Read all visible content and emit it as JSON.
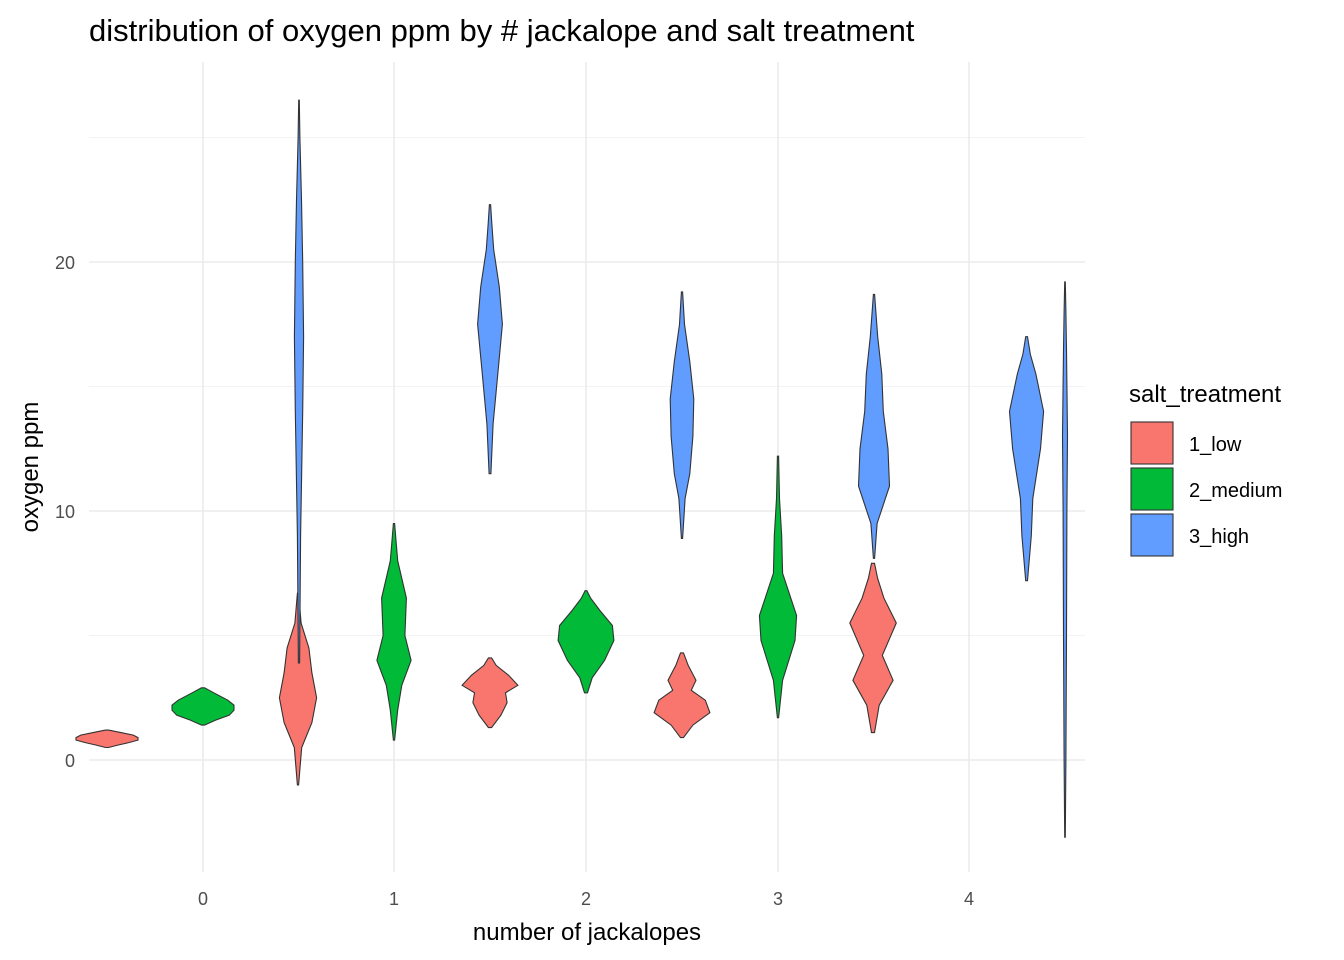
{
  "chart_data": {
    "type": "violin",
    "title": "distribution of oxygen ppm by # jackalope and salt treatment",
    "xlabel": "number of jackalopes",
    "ylabel": "oxygen ppm",
    "categories": [
      "0",
      "1",
      "2",
      "3",
      "4"
    ],
    "yticks": [
      "0",
      "10",
      "20"
    ],
    "ylim": [
      -4.5,
      28.5
    ],
    "grid": true,
    "legend": {
      "title": "salt_treatment",
      "placement": "right",
      "entries": [
        {
          "label": "1_low",
          "color": "#F8766D"
        },
        {
          "label": "2_medium",
          "color": "#00BA38"
        },
        {
          "label": "3_high",
          "color": "#619CFF"
        }
      ]
    },
    "series": [
      {
        "name": "1_low",
        "color": "#F8766D",
        "violins": [
          {
            "x": "0",
            "min": 0.5,
            "max": 1.2,
            "profile": [
              [
                0.5,
                0.05
              ],
              [
                0.6,
                0.35
              ],
              [
                0.7,
                0.7
              ],
              [
                0.8,
                1.0
              ],
              [
                0.9,
                1.0
              ],
              [
                1.0,
                0.85
              ],
              [
                1.1,
                0.45
              ],
              [
                1.2,
                0.05
              ]
            ]
          },
          {
            "x": "1",
            "min": -1.0,
            "max": 6.7,
            "profile": [
              [
                -1.0,
                0.02
              ],
              [
                0.5,
                0.12
              ],
              [
                1.5,
                0.45
              ],
              [
                2.5,
                0.6
              ],
              [
                3.5,
                0.45
              ],
              [
                4.5,
                0.35
              ],
              [
                5.5,
                0.1
              ],
              [
                6.7,
                0.02
              ]
            ]
          },
          {
            "x": "2",
            "min": 1.3,
            "max": 4.1,
            "profile": [
              [
                1.3,
                0.05
              ],
              [
                1.8,
                0.35
              ],
              [
                2.3,
                0.55
              ],
              [
                2.7,
                0.5
              ],
              [
                3.0,
                0.9
              ],
              [
                3.4,
                0.6
              ],
              [
                3.8,
                0.2
              ],
              [
                4.1,
                0.05
              ]
            ]
          },
          {
            "x": "3",
            "min": 0.9,
            "max": 4.3,
            "profile": [
              [
                0.9,
                0.05
              ],
              [
                1.4,
                0.35
              ],
              [
                1.9,
                0.9
              ],
              [
                2.4,
                0.75
              ],
              [
                2.8,
                0.3
              ],
              [
                3.2,
                0.45
              ],
              [
                3.8,
                0.2
              ],
              [
                4.3,
                0.05
              ]
            ]
          },
          {
            "x": "4",
            "min": 1.1,
            "max": 7.9,
            "profile": [
              [
                1.1,
                0.05
              ],
              [
                2.2,
                0.2
              ],
              [
                3.2,
                0.65
              ],
              [
                4.2,
                0.3
              ],
              [
                5.5,
                0.75
              ],
              [
                6.5,
                0.35
              ],
              [
                7.3,
                0.15
              ],
              [
                7.9,
                0.05
              ]
            ]
          }
        ]
      },
      {
        "name": "2_medium",
        "color": "#00BA38",
        "violins": [
          {
            "x": "0",
            "min": 1.4,
            "max": 2.9,
            "profile": [
              [
                1.4,
                0.05
              ],
              [
                1.6,
                0.4
              ],
              [
                1.8,
                0.85
              ],
              [
                2.0,
                1.0
              ],
              [
                2.2,
                1.0
              ],
              [
                2.4,
                0.8
              ],
              [
                2.7,
                0.35
              ],
              [
                2.9,
                0.05
              ]
            ]
          },
          {
            "x": "1",
            "min": 0.8,
            "max": 9.5,
            "profile": [
              [
                0.8,
                0.02
              ],
              [
                2.0,
                0.12
              ],
              [
                3.0,
                0.25
              ],
              [
                4.0,
                0.55
              ],
              [
                5.0,
                0.35
              ],
              [
                6.5,
                0.4
              ],
              [
                8.0,
                0.12
              ],
              [
                9.5,
                0.02
              ]
            ]
          },
          {
            "x": "2",
            "min": 2.7,
            "max": 6.8,
            "profile": [
              [
                2.7,
                0.05
              ],
              [
                3.3,
                0.2
              ],
              [
                4.0,
                0.6
              ],
              [
                4.8,
                0.9
              ],
              [
                5.4,
                0.85
              ],
              [
                6.0,
                0.45
              ],
              [
                6.5,
                0.15
              ],
              [
                6.8,
                0.03
              ]
            ]
          },
          {
            "x": "3",
            "min": 1.7,
            "max": 12.2,
            "profile": [
              [
                1.7,
                0.02
              ],
              [
                3.2,
                0.15
              ],
              [
                4.8,
                0.55
              ],
              [
                5.8,
                0.6
              ],
              [
                7.5,
                0.15
              ],
              [
                9.0,
                0.12
              ],
              [
                10.5,
                0.05
              ],
              [
                12.2,
                0.02
              ]
            ]
          }
        ]
      },
      {
        "name": "3_high",
        "color": "#619CFF",
        "violins": [
          {
            "x": "0",
            "min": 3.9,
            "max": 26.5,
            "profile": [
              [
                3.9,
                0.02
              ],
              [
                9.0,
                0.05
              ],
              [
                14.0,
                0.12
              ],
              [
                17.0,
                0.15
              ],
              [
                20.0,
                0.12
              ],
              [
                22.5,
                0.08
              ],
              [
                25.0,
                0.03
              ],
              [
                26.5,
                0.01
              ]
            ]
          },
          {
            "x": "1",
            "min": 11.5,
            "max": 22.3,
            "profile": [
              [
                11.5,
                0.03
              ],
              [
                13.5,
                0.1
              ],
              [
                15.5,
                0.25
              ],
              [
                17.5,
                0.4
              ],
              [
                19.0,
                0.3
              ],
              [
                20.5,
                0.12
              ],
              [
                21.5,
                0.06
              ],
              [
                22.3,
                0.02
              ]
            ]
          },
          {
            "x": "2",
            "min": 8.9,
            "max": 18.8,
            "profile": [
              [
                8.9,
                0.02
              ],
              [
                10.5,
                0.1
              ],
              [
                11.5,
                0.25
              ],
              [
                13.0,
                0.35
              ],
              [
                14.5,
                0.38
              ],
              [
                16.0,
                0.25
              ],
              [
                17.5,
                0.08
              ],
              [
                18.8,
                0.02
              ]
            ]
          },
          {
            "x": "3",
            "min": 8.1,
            "max": 18.7,
            "profile": [
              [
                8.1,
                0.02
              ],
              [
                9.5,
                0.1
              ],
              [
                11.0,
                0.5
              ],
              [
                12.5,
                0.45
              ],
              [
                14.0,
                0.3
              ],
              [
                15.5,
                0.25
              ],
              [
                17.0,
                0.12
              ],
              [
                18.7,
                0.02
              ]
            ]
          },
          {
            "x": "4",
            "min": -3.1,
            "max": 19.2,
            "profile": [
              [
                -3.1,
                0.01
              ],
              [
                0.0,
                0.03
              ],
              [
                5.0,
                0.05
              ],
              [
                10.0,
                0.06
              ],
              [
                13.0,
                0.08
              ],
              [
                16.5,
                0.05
              ],
              [
                18.0,
                0.03
              ],
              [
                19.2,
                0.01
              ]
            ]
          },
          {
            "x": "4.3",
            "min": 7.2,
            "max": 17.0,
            "profile": [
              [
                7.2,
                0.03
              ],
              [
                9.0,
                0.15
              ],
              [
                10.5,
                0.2
              ],
              [
                12.5,
                0.45
              ],
              [
                14.0,
                0.55
              ],
              [
                15.5,
                0.3
              ],
              [
                16.3,
                0.12
              ],
              [
                17.0,
                0.03
              ]
            ]
          }
        ]
      }
    ]
  }
}
